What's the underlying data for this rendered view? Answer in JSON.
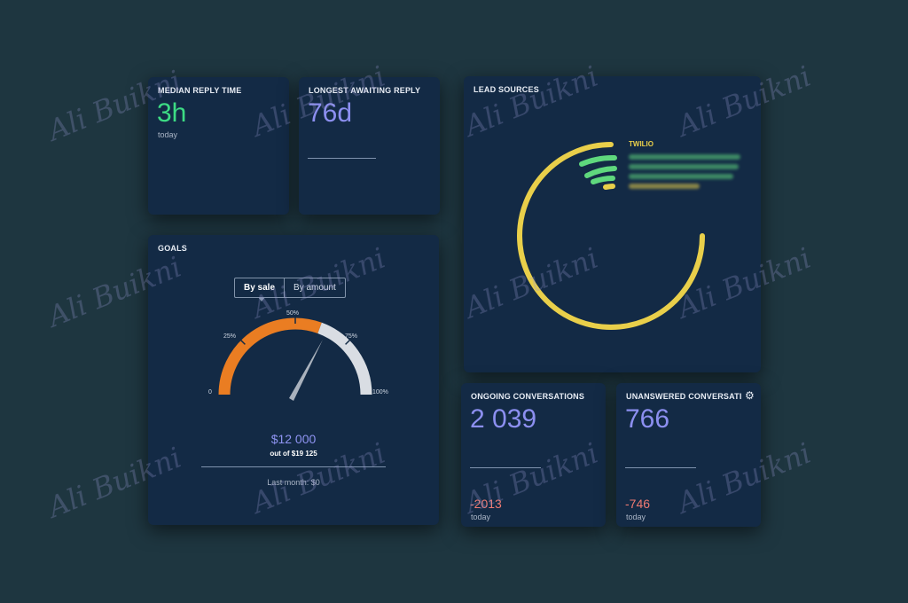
{
  "cards": {
    "median_reply": {
      "title": "MEDIAN REPLY TIME",
      "value": "3h",
      "sub": "today"
    },
    "longest_awaiting": {
      "title": "LONGEST AWAITING REPLY",
      "value": "76d"
    },
    "lead_sources": {
      "title": "LEAD SOURCES",
      "legend_title": "TWILIO"
    },
    "goals": {
      "title": "GOALS",
      "toggle_by_sale": "By sale",
      "toggle_by_amount": "By amount",
      "gauge_labels": [
        "0",
        "25%",
        "50%",
        "75%",
        "100%"
      ],
      "amount": "$12 000",
      "out_of": "out of $19 125",
      "last_month": "Last month: $0"
    },
    "ongoing": {
      "title": "ONGOING CONVERSATIONS",
      "value": "2 039",
      "delta": "-2013",
      "sub": "today"
    },
    "unanswered": {
      "title": "UNANSWERED CONVERSATI",
      "value": "766",
      "delta": "-746",
      "sub": "today"
    }
  },
  "watermark_text": "Ali Buikni",
  "icons": {
    "settings": "gear-icon"
  },
  "colors": {
    "background": "#1e3640",
    "card": "#132a45",
    "green_value": "#3ddc84",
    "purple_value": "#8c8ff0",
    "negative": "#ef7a72",
    "gauge_orange": "#ea7d22",
    "gauge_grey": "#d9dde3",
    "ring_yellow": "#e9cf4a",
    "arc_green": "#5fd87d"
  }
}
